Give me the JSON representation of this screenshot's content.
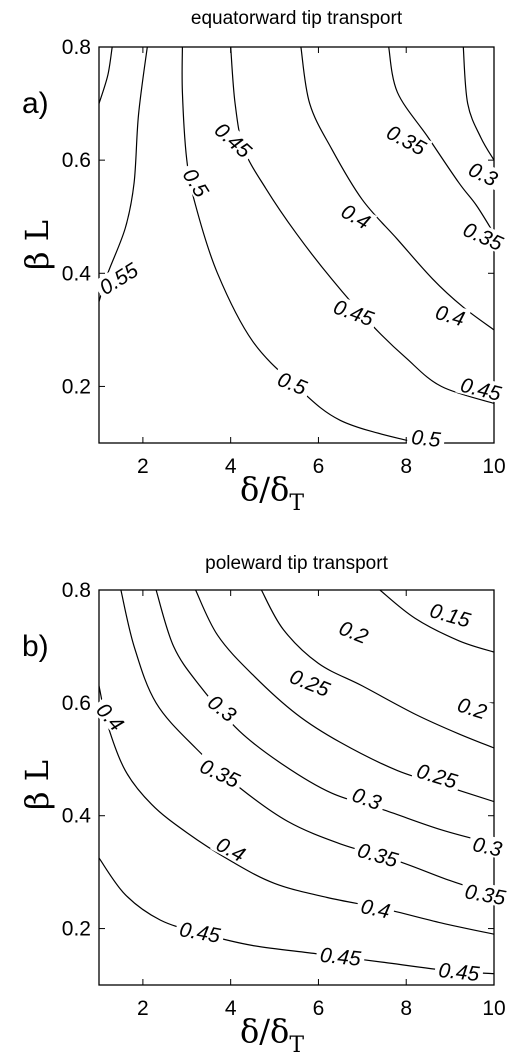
{
  "chart_data": [
    {
      "type": "contour",
      "panel_label": "a)",
      "title": "equatorward tip transport",
      "xlabel": "δ/δ",
      "xlabel_sub": "T",
      "ylabel": "β L",
      "xlim": [
        1,
        10
      ],
      "ylim": [
        0.1,
        0.8
      ],
      "xticks": [
        2,
        4,
        6,
        8,
        10
      ],
      "yticks": [
        0.2,
        0.4,
        0.6,
        0.8
      ],
      "xtick_labels": [
        "2",
        "4",
        "6",
        "8",
        "10"
      ],
      "ytick_labels": [
        "0.2",
        "0.4",
        "0.6",
        "0.8"
      ],
      "contours": [
        {
          "level": "0.55",
          "points": [
            [
              1.0,
              0.7
            ],
            [
              1.2,
              0.75
            ],
            [
              1.3,
              0.8
            ]
          ]
        },
        {
          "level": "0.55",
          "points": [
            [
              1.0,
              0.35
            ],
            [
              1.2,
              0.4
            ],
            [
              1.6,
              0.48
            ],
            [
              1.8,
              0.56
            ],
            [
              1.9,
              0.68
            ],
            [
              2.1,
              0.8
            ]
          ]
        },
        {
          "level": "0.5",
          "points": [
            [
              2.9,
              0.8
            ],
            [
              2.9,
              0.72
            ],
            [
              3.0,
              0.6
            ],
            [
              3.2,
              0.52
            ],
            [
              3.7,
              0.4
            ],
            [
              4.5,
              0.28
            ],
            [
              5.5,
              0.2
            ],
            [
              6.5,
              0.14
            ],
            [
              8.0,
              0.105
            ],
            [
              8.6,
              0.1
            ]
          ]
        },
        {
          "level": "0.45",
          "points": [
            [
              4.0,
              0.8
            ],
            [
              4.1,
              0.7
            ],
            [
              4.3,
              0.62
            ],
            [
              4.8,
              0.55
            ],
            [
              5.5,
              0.47
            ],
            [
              6.3,
              0.39
            ],
            [
              7.2,
              0.31
            ],
            [
              8.0,
              0.25
            ],
            [
              8.8,
              0.2
            ],
            [
              10.0,
              0.17
            ]
          ]
        },
        {
          "level": "0.4",
          "points": [
            [
              5.6,
              0.8
            ],
            [
              5.8,
              0.7
            ],
            [
              6.3,
              0.62
            ],
            [
              7.0,
              0.53
            ],
            [
              7.8,
              0.46
            ],
            [
              8.6,
              0.39
            ],
            [
              9.3,
              0.34
            ],
            [
              10.0,
              0.3
            ]
          ]
        },
        {
          "level": "0.35",
          "points": [
            [
              7.6,
              0.8
            ],
            [
              7.8,
              0.72
            ],
            [
              8.5,
              0.64
            ],
            [
              9.2,
              0.56
            ],
            [
              9.6,
              0.52
            ],
            [
              10.0,
              0.47
            ]
          ]
        },
        {
          "level": "0.3",
          "points": [
            [
              9.3,
              0.8
            ],
            [
              9.4,
              0.7
            ],
            [
              9.7,
              0.64
            ],
            [
              10.0,
              0.6
            ]
          ]
        }
      ],
      "contour_labels": [
        {
          "text": "0.55",
          "x": 1.45,
          "y": 0.39,
          "rotate": -32
        },
        {
          "text": "0.5",
          "x": 3.2,
          "y": 0.56,
          "rotate": 58
        },
        {
          "text": "0.45",
          "x": 4.05,
          "y": 0.635,
          "rotate": 42
        },
        {
          "text": "0.5",
          "x": 5.4,
          "y": 0.205,
          "rotate": 22
        },
        {
          "text": "0.45",
          "x": 6.8,
          "y": 0.33,
          "rotate": 20
        },
        {
          "text": "0.4",
          "x": 6.85,
          "y": 0.5,
          "rotate": 30
        },
        {
          "text": "0.35",
          "x": 8.0,
          "y": 0.635,
          "rotate": 28
        },
        {
          "text": "0.4",
          "x": 9.0,
          "y": 0.325,
          "rotate": 16
        },
        {
          "text": "0.45",
          "x": 9.7,
          "y": 0.195,
          "rotate": 14
        },
        {
          "text": "0.5",
          "x": 8.45,
          "y": 0.108,
          "rotate": 6
        },
        {
          "text": "0.35",
          "x": 9.75,
          "y": 0.465,
          "rotate": 24
        },
        {
          "text": "0.3",
          "x": 9.75,
          "y": 0.575,
          "rotate": 26
        }
      ]
    },
    {
      "type": "contour",
      "panel_label": "b)",
      "title": "poleward tip transport",
      "xlabel": "δ/δ",
      "xlabel_sub": "T",
      "ylabel": "β L",
      "xlim": [
        1,
        10
      ],
      "ylim": [
        0.1,
        0.8
      ],
      "xticks": [
        2,
        4,
        6,
        8,
        10
      ],
      "yticks": [
        0.2,
        0.4,
        0.6,
        0.8
      ],
      "xtick_labels": [
        "2",
        "4",
        "6",
        "8",
        "10"
      ],
      "ytick_labels": [
        "0.2",
        "0.4",
        "0.6",
        "0.8"
      ],
      "contours": [
        {
          "level": "0.45",
          "points": [
            [
              1.0,
              0.325
            ],
            [
              1.6,
              0.26
            ],
            [
              2.4,
              0.215
            ],
            [
              3.4,
              0.19
            ],
            [
              4.5,
              0.17
            ],
            [
              6.0,
              0.155
            ],
            [
              7.5,
              0.14
            ],
            [
              9.0,
              0.125
            ],
            [
              10.0,
              0.12
            ]
          ]
        },
        {
          "level": "0.4",
          "points": [
            [
              1.0,
              0.63
            ],
            [
              1.2,
              0.56
            ],
            [
              1.6,
              0.48
            ],
            [
              2.2,
              0.42
            ],
            [
              3.0,
              0.37
            ],
            [
              4.0,
              0.32
            ],
            [
              5.0,
              0.28
            ],
            [
              6.2,
              0.255
            ],
            [
              7.5,
              0.235
            ],
            [
              8.8,
              0.21
            ],
            [
              10.0,
              0.19
            ]
          ]
        },
        {
          "level": "0.35",
          "points": [
            [
              1.5,
              0.8
            ],
            [
              1.8,
              0.7
            ],
            [
              2.3,
              0.6
            ],
            [
              3.2,
              0.52
            ],
            [
              4.2,
              0.45
            ],
            [
              5.3,
              0.39
            ],
            [
              6.5,
              0.35
            ],
            [
              7.8,
              0.32
            ],
            [
              9.0,
              0.285
            ],
            [
              10.0,
              0.26
            ]
          ]
        },
        {
          "level": "0.3",
          "points": [
            [
              2.3,
              0.8
            ],
            [
              2.7,
              0.7
            ],
            [
              3.3,
              0.63
            ],
            [
              4.2,
              0.55
            ],
            [
              5.2,
              0.49
            ],
            [
              6.3,
              0.44
            ],
            [
              7.5,
              0.41
            ],
            [
              8.8,
              0.375
            ],
            [
              10.0,
              0.35
            ]
          ]
        },
        {
          "level": "0.25",
          "points": [
            [
              3.2,
              0.8
            ],
            [
              3.7,
              0.72
            ],
            [
              4.5,
              0.65
            ],
            [
              5.5,
              0.58
            ],
            [
              6.5,
              0.53
            ],
            [
              7.8,
              0.48
            ],
            [
              9.0,
              0.45
            ],
            [
              10.0,
              0.425
            ]
          ]
        },
        {
          "level": "0.2",
          "points": [
            [
              4.7,
              0.8
            ],
            [
              5.2,
              0.73
            ],
            [
              6.0,
              0.67
            ],
            [
              7.0,
              0.63
            ],
            [
              8.2,
              0.58
            ],
            [
              9.2,
              0.545
            ],
            [
              10.0,
              0.52
            ]
          ]
        },
        {
          "level": "0.15",
          "points": [
            [
              7.4,
              0.8
            ],
            [
              8.2,
              0.75
            ],
            [
              9.2,
              0.71
            ],
            [
              10.0,
              0.69
            ]
          ]
        }
      ],
      "contour_labels": [
        {
          "text": "0.4",
          "x": 1.25,
          "y": 0.575,
          "rotate": 48
        },
        {
          "text": "0.3",
          "x": 3.8,
          "y": 0.59,
          "rotate": 38
        },
        {
          "text": "0.25",
          "x": 5.8,
          "y": 0.635,
          "rotate": 22
        },
        {
          "text": "0.2",
          "x": 6.8,
          "y": 0.725,
          "rotate": 22
        },
        {
          "text": "0.15",
          "x": 9.0,
          "y": 0.755,
          "rotate": 16
        },
        {
          "text": "0.35",
          "x": 3.75,
          "y": 0.475,
          "rotate": 25
        },
        {
          "text": "0.3",
          "x": 7.1,
          "y": 0.43,
          "rotate": 20
        },
        {
          "text": "0.25",
          "x": 8.7,
          "y": 0.47,
          "rotate": 17
        },
        {
          "text": "0.2",
          "x": 9.5,
          "y": 0.59,
          "rotate": 18
        },
        {
          "text": "0.4",
          "x": 4.0,
          "y": 0.34,
          "rotate": 28
        },
        {
          "text": "0.35",
          "x": 7.35,
          "y": 0.33,
          "rotate": 16
        },
        {
          "text": "0.4",
          "x": 7.3,
          "y": 0.235,
          "rotate": 12
        },
        {
          "text": "0.3",
          "x": 9.85,
          "y": 0.345,
          "rotate": 12
        },
        {
          "text": "0.35",
          "x": 9.8,
          "y": 0.26,
          "rotate": 10
        },
        {
          "text": "0.45",
          "x": 3.3,
          "y": 0.193,
          "rotate": 10
        },
        {
          "text": "0.45",
          "x": 6.5,
          "y": 0.15,
          "rotate": 6
        },
        {
          "text": "0.45",
          "x": 9.2,
          "y": 0.123,
          "rotate": 6
        }
      ]
    }
  ]
}
